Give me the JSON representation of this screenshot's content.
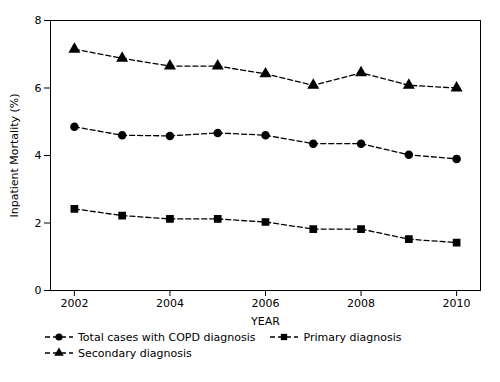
{
  "chart_data": {
    "type": "line",
    "x": [
      2002,
      2003,
      2004,
      2005,
      2006,
      2007,
      2008,
      2009,
      2010
    ],
    "series": [
      {
        "name": "Total cases with COPD diagnosis",
        "color": "#000000",
        "marker": "circle",
        "line_style": "dashed",
        "values": [
          4.85,
          4.6,
          4.58,
          4.67,
          4.6,
          4.35,
          4.35,
          4.02,
          3.9
        ]
      },
      {
        "name": "Primary diagnosis",
        "color": "#000000",
        "marker": "square",
        "line_style": "dashed",
        "values": [
          2.42,
          2.22,
          2.12,
          2.12,
          2.03,
          1.82,
          1.82,
          1.52,
          1.42
        ]
      },
      {
        "name": "Secondary diagnosis",
        "color": "#000000",
        "marker": "triangle",
        "line_style": "dashed",
        "values": [
          7.15,
          6.88,
          6.65,
          6.65,
          6.42,
          6.08,
          6.45,
          6.08,
          6.0
        ]
      }
    ],
    "xlabel": "YEAR",
    "ylabel": "Inpatient Mortality (%)",
    "xlim": [
      2001.5,
      2010.5
    ],
    "xticks": [
      2002,
      2004,
      2006,
      2008,
      2010
    ],
    "ylim": [
      0,
      8
    ],
    "yticks": [
      0,
      2,
      4,
      6,
      8
    ],
    "legend": "bottom"
  }
}
